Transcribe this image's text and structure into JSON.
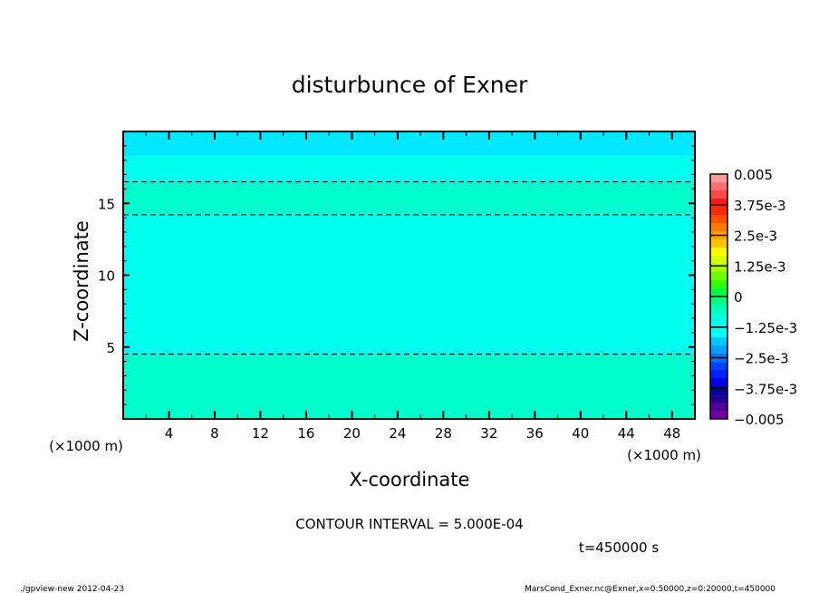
{
  "chart_data": {
    "type": "heatmap",
    "title": "disturbunce of Exner",
    "xlabel": "X-coordinate",
    "ylabel": "Z-coordinate",
    "x_unit": "(×1000 m)",
    "y_unit": "(×1000 m)",
    "xlim": [
      0,
      50
    ],
    "ylim": [
      0,
      20
    ],
    "x_ticks": [
      4,
      8,
      12,
      16,
      20,
      24,
      28,
      32,
      36,
      40,
      44,
      48
    ],
    "y_ticks": [
      5,
      10,
      15
    ],
    "bands": [
      {
        "z": [
          0,
          4.5
        ],
        "color": "#00ffcc"
      },
      {
        "z": [
          4.5,
          14.2
        ],
        "color": "#00ffee"
      },
      {
        "z": [
          14.2,
          16.5
        ],
        "color": "#00ffcc"
      },
      {
        "z": [
          16.5,
          18.3
        ],
        "color": "#00ffee"
      },
      {
        "z": [
          18.3,
          20
        ],
        "color": "#00e8ff"
      }
    ],
    "contour_lines_z": [
      4.5,
      14.2,
      16.5
    ],
    "contour_interval_text": "CONTOUR INTERVAL = 5.000E-04",
    "colorbar": {
      "range": [
        -0.005,
        0.005
      ],
      "labels": [
        "0.005",
        "3.75e-3",
        "2.5e-3",
        "1.25e-3",
        "0",
        "-1.25e-3",
        "-2.5e-3",
        "-3.75e-3",
        "-0.005"
      ],
      "colors_top_to_bottom": [
        "#ff9a9a",
        "#ff7070",
        "#ff4a4a",
        "#ff1a1a",
        "#ff2a00",
        "#ff5000",
        "#ff7a00",
        "#ffa000",
        "#ffc400",
        "#ffff00",
        "#d8ff00",
        "#a8ff00",
        "#70ff00",
        "#30ff00",
        "#00ff40",
        "#00ff80",
        "#00ffb8",
        "#00ffdc",
        "#00fff0",
        "#00ffff",
        "#00c8ff",
        "#00a0ff",
        "#0070ff",
        "#0040ff",
        "#0020ff",
        "#0000e8",
        "#0000a0",
        "#200090",
        "#500098",
        "#7000a0"
      ]
    },
    "time_label": "t=450000 s"
  },
  "footer": {
    "left": "./gpview-new  2012-04-23",
    "right": "MarsCond_Exner.nc@Exner,x=0:50000,z=0:20000,t=450000"
  }
}
